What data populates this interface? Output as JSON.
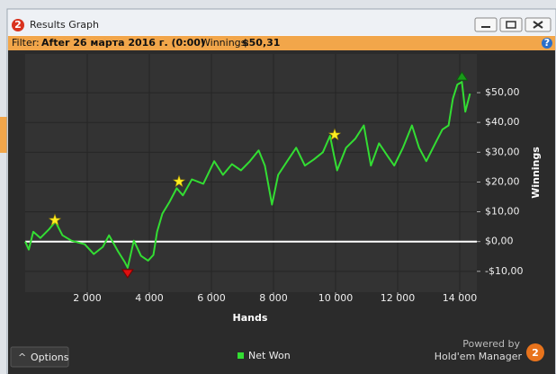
{
  "window": {
    "icon": "2",
    "title": "Results Graph",
    "filter_label": "Filter:",
    "filter_value": "After 26 марта 2016 г. (0:00)",
    "winnings_label": "Winnings:",
    "winnings_value": "$50,31"
  },
  "chart_data": {
    "type": "line",
    "x_label": "Hands",
    "y_label": "Winnings",
    "x": [
      0,
      115,
      260,
      490,
      775,
      975,
      1200,
      1490,
      1920,
      2210,
      2500,
      2700,
      2990,
      3215,
      3300,
      3500,
      3730,
      3960,
      4130,
      4250,
      4420,
      4650,
      4880,
      5080,
      5370,
      5740,
      6090,
      6370,
      6660,
      6950,
      7240,
      7520,
      7720,
      7950,
      8150,
      8440,
      8730,
      9010,
      9300,
      9590,
      9820,
      10050,
      10340,
      10630,
      10910,
      11140,
      11400,
      11690,
      11890,
      12170,
      12460,
      12690,
      12920,
      13210,
      13440,
      13640,
      13780,
      13920,
      14070,
      14180,
      14330
    ],
    "series": [
      {
        "name": "Net Won",
        "color": "#33dd33",
        "values": [
          0,
          -2.7,
          3.3,
          1.2,
          4.2,
          6.7,
          2.1,
          0.3,
          -0.9,
          -4.2,
          -1.8,
          2.1,
          -3.3,
          -7,
          -8.8,
          0.3,
          -4.8,
          -6.4,
          -4.5,
          3.3,
          9.4,
          13.3,
          17.9,
          15.5,
          20.9,
          19.4,
          27,
          22.4,
          26,
          23.9,
          27,
          30.6,
          25.5,
          12.4,
          22.4,
          27,
          31.5,
          25.5,
          27.6,
          30,
          35.5,
          23.9,
          31.5,
          34.5,
          39,
          25.5,
          33,
          28.5,
          25.5,
          31.5,
          39,
          31.5,
          27,
          33,
          37.6,
          39,
          48,
          52.7,
          53.6,
          43.6,
          49.7
        ]
      }
    ],
    "xlim": [
      0,
      14550
    ],
    "ylim": [
      -17,
      63
    ],
    "xticks": [
      {
        "value": 2000,
        "label": "2 000"
      },
      {
        "value": 4000,
        "label": "4 000"
      },
      {
        "value": 6000,
        "label": "6 000"
      },
      {
        "value": 8000,
        "label": "8 000"
      },
      {
        "value": 10000,
        "label": "10 000"
      },
      {
        "value": 12000,
        "label": "12 000"
      },
      {
        "value": 14000,
        "label": "14 000"
      }
    ],
    "yticks": [
      {
        "value": -10,
        "label": "-$10,00"
      },
      {
        "value": 0,
        "label": "$0,00"
      },
      {
        "value": 10,
        "label": "$10,00"
      },
      {
        "value": 20,
        "label": "$20,00"
      },
      {
        "value": 30,
        "label": "$30,00"
      },
      {
        "value": 40,
        "label": "$40,00"
      },
      {
        "value": 50,
        "label": "$50,00"
      }
    ],
    "grid": true
  },
  "footer": {
    "options": "Options",
    "powered_by": "Powered by",
    "brand": "Hold'em Manager",
    "logo": "2"
  }
}
